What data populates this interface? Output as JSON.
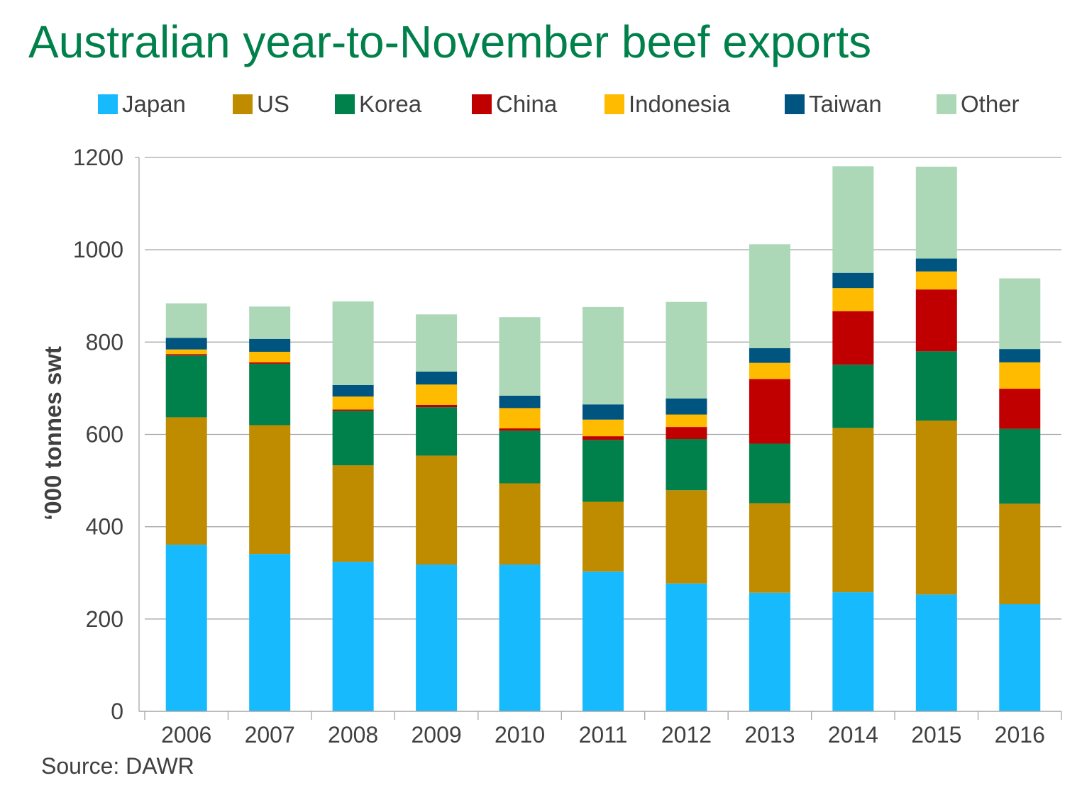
{
  "chart_data": {
    "type": "bar",
    "stacked": true,
    "title": "Australian year-to-November beef exports",
    "ylabel": "‘000 tonnes swt",
    "xlabel": "",
    "ylim": [
      0,
      1200
    ],
    "yticks": [
      0,
      200,
      400,
      600,
      800,
      1000,
      1200
    ],
    "grid": true,
    "legend_position": "top",
    "source": "Source: DAWR",
    "categories": [
      "2006",
      "2007",
      "2008",
      "2009",
      "2010",
      "2011",
      "2012",
      "2013",
      "2014",
      "2015",
      "2016"
    ],
    "series": [
      {
        "name": "Japan",
        "color": "#17bbfd",
        "values": [
          361,
          341,
          324,
          318,
          318,
          303,
          277,
          257,
          258,
          253,
          232
        ]
      },
      {
        "name": "US",
        "color": "#bf8c00",
        "values": [
          276,
          279,
          209,
          236,
          176,
          151,
          202,
          194,
          356,
          377,
          218
        ]
      },
      {
        "name": "Korea",
        "color": "#00804a",
        "values": [
          134,
          133,
          118,
          105,
          114,
          134,
          111,
          129,
          137,
          150,
          162
        ]
      },
      {
        "name": "China",
        "color": "#c00000",
        "values": [
          3,
          3,
          3,
          5,
          5,
          8,
          26,
          140,
          116,
          134,
          87
        ]
      },
      {
        "name": "Indonesia",
        "color": "#ffbb00",
        "values": [
          10,
          23,
          28,
          44,
          44,
          36,
          27,
          35,
          50,
          39,
          57
        ]
      },
      {
        "name": "Taiwan",
        "color": "#005580",
        "values": [
          25,
          28,
          25,
          28,
          27,
          33,
          35,
          32,
          33,
          28,
          29
        ]
      },
      {
        "name": "Other",
        "color": "#acd8b8",
        "values": [
          75,
          70,
          181,
          124,
          170,
          211,
          209,
          225,
          231,
          199,
          153
        ]
      }
    ]
  }
}
